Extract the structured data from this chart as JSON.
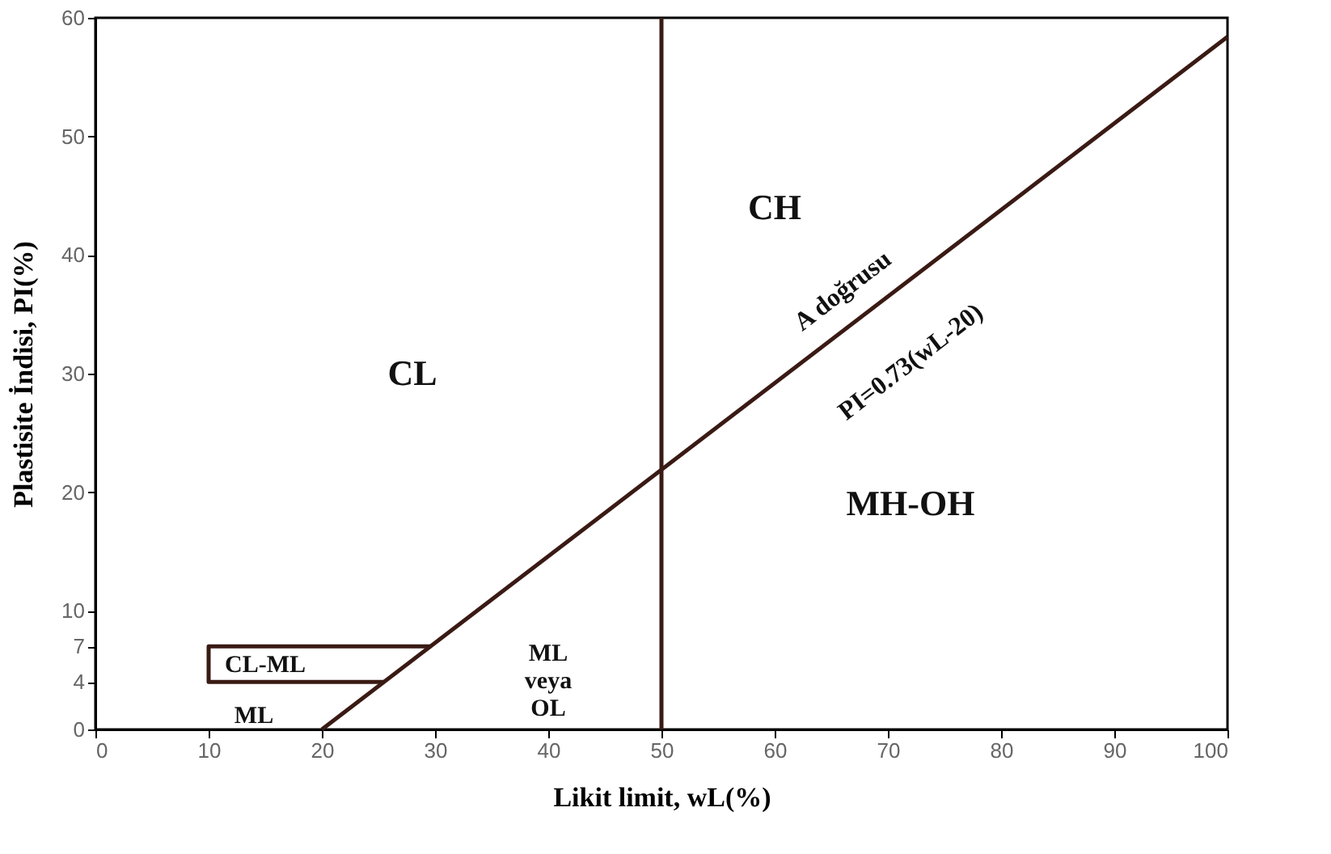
{
  "chart_data": {
    "type": "line",
    "xlabel": "Likit limit, wL(%)",
    "ylabel": "Plastisite İndisi, PI(%)",
    "xlim": [
      0,
      100
    ],
    "ylim": [
      0,
      60
    ],
    "xticks": [
      0,
      10,
      20,
      30,
      40,
      50,
      60,
      70,
      80,
      90,
      100
    ],
    "yticks": [
      0,
      4,
      7,
      10,
      20,
      30,
      40,
      50,
      60
    ],
    "grid": false,
    "marker": "none",
    "line_style": "solid",
    "series": [
      {
        "color": "#3a1a14",
        "x": [
          20,
          100
        ],
        "values": [
          0,
          58.4
        ]
      },
      {
        "color": "#3a1a14",
        "x": [
          29.6,
          10,
          10,
          25.5
        ],
        "values": [
          7,
          7,
          4,
          4
        ]
      }
    ],
    "ref_lines": [
      {
        "axis": "x",
        "value": 50,
        "color": "#3a1a14",
        "line_style": "solid"
      }
    ],
    "annotations": [
      "CL",
      "CH",
      "MH-OH",
      "ML\nveya\nOL",
      "CL-ML",
      "ML",
      "A doğrusu",
      "PI=0.73(wL-20)"
    ]
  }
}
